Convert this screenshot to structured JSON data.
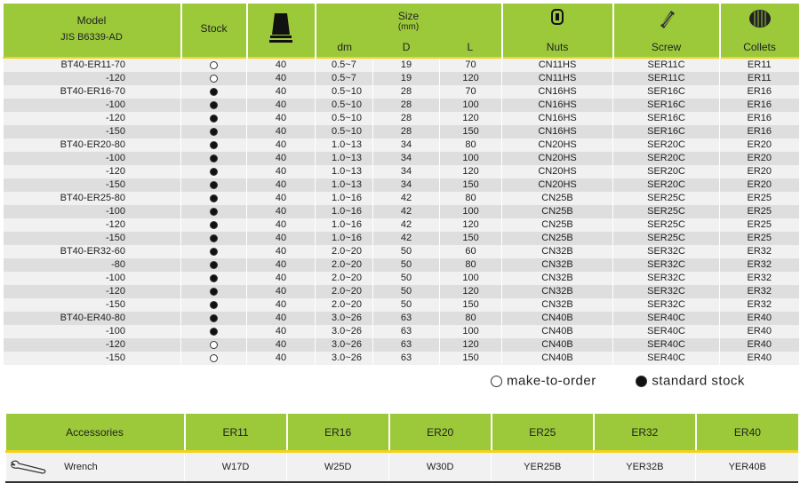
{
  "header": {
    "model": "Model",
    "standard": "JIS B6339-AD",
    "stock": "Stock",
    "taper_icon": "bt-taper-icon",
    "size": "Size",
    "size_unit": "(mm)",
    "dm": "dm",
    "d": "D",
    "l": "L",
    "nuts": "Nuts",
    "screw": "Screw",
    "collets": "Collets"
  },
  "rows": [
    {
      "model": "BT40-ER11-70",
      "stock": "make-to-order",
      "t": "40",
      "dm": "0.5~7",
      "d": "19",
      "l": "70",
      "nut": "CN11HS",
      "screw": "SER11C",
      "collet": "ER11"
    },
    {
      "model": "-120",
      "stock": "make-to-order",
      "t": "40",
      "dm": "0.5~7",
      "d": "19",
      "l": "120",
      "nut": "CN11HS",
      "screw": "SER11C",
      "collet": "ER11"
    },
    {
      "model": "BT40-ER16-70",
      "stock": "standard",
      "t": "40",
      "dm": "0.5~10",
      "d": "28",
      "l": "70",
      "nut": "CN16HS",
      "screw": "SER16C",
      "collet": "ER16"
    },
    {
      "model": "-100",
      "stock": "standard",
      "t": "40",
      "dm": "0.5~10",
      "d": "28",
      "l": "100",
      "nut": "CN16HS",
      "screw": "SER16C",
      "collet": "ER16"
    },
    {
      "model": "-120",
      "stock": "standard",
      "t": "40",
      "dm": "0.5~10",
      "d": "28",
      "l": "120",
      "nut": "CN16HS",
      "screw": "SER16C",
      "collet": "ER16"
    },
    {
      "model": "-150",
      "stock": "standard",
      "t": "40",
      "dm": "0.5~10",
      "d": "28",
      "l": "150",
      "nut": "CN16HS",
      "screw": "SER16C",
      "collet": "ER16"
    },
    {
      "model": "BT40-ER20-80",
      "stock": "standard",
      "t": "40",
      "dm": "1.0~13",
      "d": "34",
      "l": "80",
      "nut": "CN20HS",
      "screw": "SER20C",
      "collet": "ER20"
    },
    {
      "model": "-100",
      "stock": "standard",
      "t": "40",
      "dm": "1.0~13",
      "d": "34",
      "l": "100",
      "nut": "CN20HS",
      "screw": "SER20C",
      "collet": "ER20"
    },
    {
      "model": "-120",
      "stock": "standard",
      "t": "40",
      "dm": "1.0~13",
      "d": "34",
      "l": "120",
      "nut": "CN20HS",
      "screw": "SER20C",
      "collet": "ER20"
    },
    {
      "model": "-150",
      "stock": "standard",
      "t": "40",
      "dm": "1.0~13",
      "d": "34",
      "l": "150",
      "nut": "CN20HS",
      "screw": "SER20C",
      "collet": "ER20"
    },
    {
      "model": "BT40-ER25-80",
      "stock": "standard",
      "t": "40",
      "dm": "1.0~16",
      "d": "42",
      "l": "80",
      "nut": "CN25B",
      "screw": "SER25C",
      "collet": "ER25"
    },
    {
      "model": "-100",
      "stock": "standard",
      "t": "40",
      "dm": "1.0~16",
      "d": "42",
      "l": "100",
      "nut": "CN25B",
      "screw": "SER25C",
      "collet": "ER25"
    },
    {
      "model": "-120",
      "stock": "standard",
      "t": "40",
      "dm": "1.0~16",
      "d": "42",
      "l": "120",
      "nut": "CN25B",
      "screw": "SER25C",
      "collet": "ER25"
    },
    {
      "model": "-150",
      "stock": "standard",
      "t": "40",
      "dm": "1.0~16",
      "d": "42",
      "l": "150",
      "nut": "CN25B",
      "screw": "SER25C",
      "collet": "ER25"
    },
    {
      "model": "BT40-ER32-60",
      "stock": "standard",
      "t": "40",
      "dm": "2.0~20",
      "d": "50",
      "l": "60",
      "nut": "CN32B",
      "screw": "SER32C",
      "collet": "ER32"
    },
    {
      "model": "-80",
      "stock": "standard",
      "t": "40",
      "dm": "2.0~20",
      "d": "50",
      "l": "80",
      "nut": "CN32B",
      "screw": "SER32C",
      "collet": "ER32"
    },
    {
      "model": "-100",
      "stock": "standard",
      "t": "40",
      "dm": "2.0~20",
      "d": "50",
      "l": "100",
      "nut": "CN32B",
      "screw": "SER32C",
      "collet": "ER32"
    },
    {
      "model": "-120",
      "stock": "standard",
      "t": "40",
      "dm": "2.0~20",
      "d": "50",
      "l": "120",
      "nut": "CN32B",
      "screw": "SER32C",
      "collet": "ER32"
    },
    {
      "model": "-150",
      "stock": "standard",
      "t": "40",
      "dm": "2.0~20",
      "d": "50",
      "l": "150",
      "nut": "CN32B",
      "screw": "SER32C",
      "collet": "ER32"
    },
    {
      "model": "BT40-ER40-80",
      "stock": "standard",
      "t": "40",
      "dm": "3.0~26",
      "d": "63",
      "l": "80",
      "nut": "CN40B",
      "screw": "SER40C",
      "collet": "ER40"
    },
    {
      "model": "-100",
      "stock": "standard",
      "t": "40",
      "dm": "3.0~26",
      "d": "63",
      "l": "100",
      "nut": "CN40B",
      "screw": "SER40C",
      "collet": "ER40"
    },
    {
      "model": "-120",
      "stock": "make-to-order",
      "t": "40",
      "dm": "3.0~26",
      "d": "63",
      "l": "120",
      "nut": "CN40B",
      "screw": "SER40C",
      "collet": "ER40"
    },
    {
      "model": "-150",
      "stock": "make-to-order",
      "t": "40",
      "dm": "3.0~26",
      "d": "63",
      "l": "150",
      "nut": "CN40B",
      "screw": "SER40C",
      "collet": "ER40"
    }
  ],
  "legend": {
    "make_to_order": "make-to-order",
    "standard": "standard stock"
  },
  "accessories": {
    "title": "Accessories",
    "columns": [
      "ER11",
      "ER16",
      "ER20",
      "ER25",
      "ER32",
      "ER40"
    ],
    "item": "Wrench",
    "values": [
      "W17D",
      "W25D",
      "W30D",
      "YER25B",
      "YER32B",
      "YER40B"
    ]
  }
}
